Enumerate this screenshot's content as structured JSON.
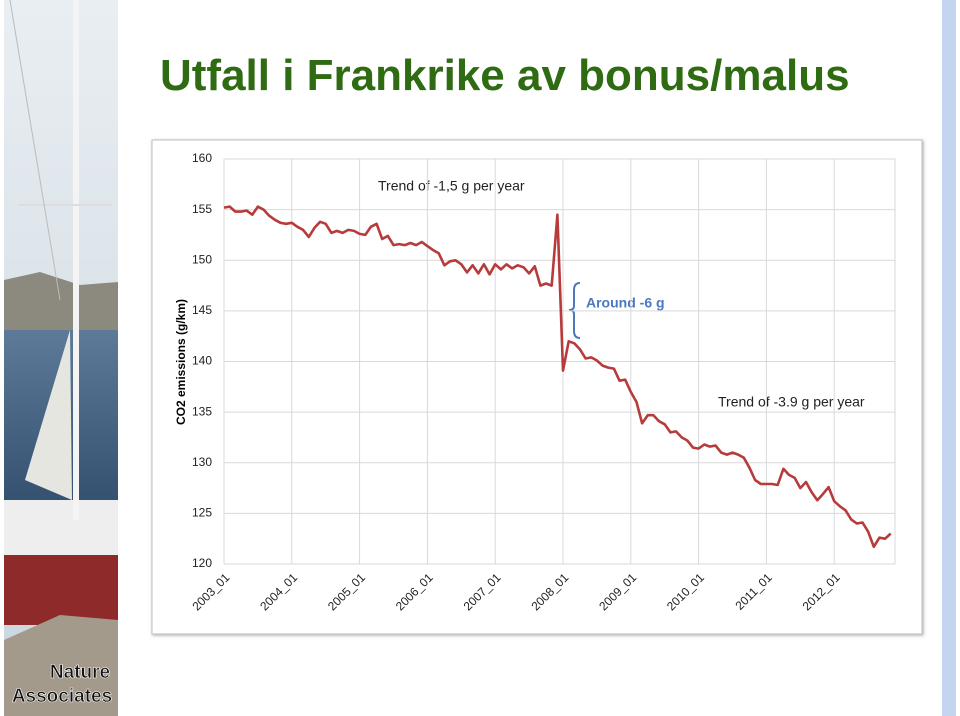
{
  "slide_title": "Utfall i Frankrike av bonus/malus",
  "logo": [
    "Nature",
    "Associates"
  ],
  "chart_data": {
    "type": "line",
    "y_label": "CO2 emissions (g/km)",
    "annotations": [
      "Trend of -1,5 g per year",
      "Around -6 g",
      "Trend of -3.9 g per year"
    ],
    "categories": [
      "2003_01",
      null,
      null,
      null,
      null,
      null,
      null,
      null,
      null,
      null,
      null,
      null,
      "2004_01",
      null,
      null,
      null,
      null,
      null,
      null,
      null,
      null,
      null,
      null,
      null,
      "2005_01",
      null,
      null,
      null,
      null,
      null,
      null,
      null,
      null,
      null,
      null,
      null,
      "2006_01",
      null,
      null,
      null,
      null,
      null,
      null,
      null,
      null,
      null,
      null,
      null,
      "2007_01",
      null,
      null,
      null,
      null,
      null,
      null,
      null,
      null,
      null,
      null,
      null,
      "2008_01",
      null,
      null,
      null,
      null,
      null,
      null,
      null,
      null,
      null,
      null,
      null,
      "2009_01",
      null,
      null,
      null,
      null,
      null,
      null,
      null,
      null,
      null,
      null,
      null,
      "2010_01",
      null,
      null,
      null,
      null,
      null,
      null,
      null,
      null,
      null,
      null,
      null,
      "2011_01",
      null,
      null,
      null,
      null,
      null,
      null,
      null,
      null,
      null,
      null,
      null,
      "2012_01",
      null,
      null,
      null,
      null,
      null,
      null,
      null,
      null,
      null,
      null
    ],
    "values": [
      155.2,
      155.3,
      154.8,
      154.8,
      154.9,
      154.5,
      155.3,
      155.0,
      154.4,
      154.0,
      153.7,
      153.6,
      153.7,
      153.3,
      153.0,
      152.3,
      153.2,
      153.8,
      153.6,
      152.7,
      152.9,
      152.7,
      153.0,
      152.9,
      152.6,
      152.5,
      153.3,
      153.6,
      152.1,
      152.4,
      151.5,
      151.6,
      151.5,
      151.7,
      151.5,
      151.8,
      151.4,
      151.0,
      150.7,
      149.5,
      149.9,
      150.0,
      149.6,
      148.8,
      149.5,
      148.7,
      149.6,
      148.6,
      149.6,
      149.1,
      149.6,
      149.2,
      149.5,
      149.3,
      148.7,
      149.4,
      147.5,
      147.7,
      147.5,
      154.5,
      139.1,
      142.0,
      141.8,
      141.2,
      140.3,
      140.4,
      140.1,
      139.6,
      139.4,
      139.3,
      138.1,
      138.2,
      137.0,
      136.0,
      133.9,
      134.7,
      134.7,
      134.1,
      133.8,
      133.0,
      133.1,
      132.5,
      132.2,
      131.5,
      131.4,
      131.8,
      131.6,
      131.7,
      131.0,
      130.8,
      131.0,
      130.8,
      130.5,
      129.5,
      128.3,
      127.9,
      127.9,
      127.9,
      127.8,
      129.4,
      128.8,
      128.5,
      127.5,
      128.1,
      127.1,
      126.3,
      126.9,
      127.6,
      126.2,
      125.7,
      125.3,
      124.4,
      124.0,
      124.1,
      123.2,
      121.7,
      122.6,
      122.5,
      123.0
    ],
    "color": "#b83b3b",
    "ylim": [
      120,
      160
    ],
    "yticks": [
      120,
      125,
      130,
      135,
      140,
      145,
      150,
      155,
      160
    ],
    "grid": true
  }
}
